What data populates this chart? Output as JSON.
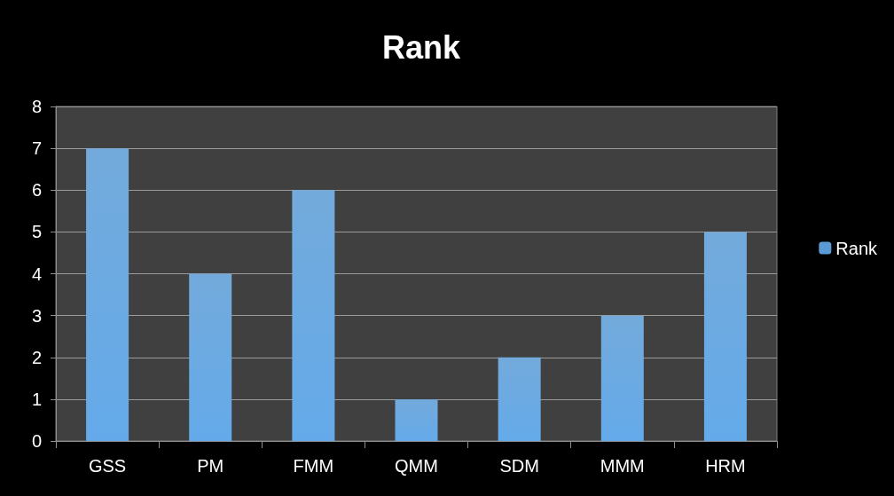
{
  "chart_data": {
    "type": "bar",
    "title": "Rank",
    "categories": [
      "GSS",
      "PM",
      "FMM",
      "QMM",
      "SDM",
      "MMM",
      "HRM"
    ],
    "series": [
      {
        "name": "Rank",
        "color": "#5b9bd5",
        "values": [
          7,
          4,
          6,
          1,
          2,
          3,
          5
        ]
      }
    ],
    "ylim": [
      0,
      8
    ],
    "yticks": [
      0,
      1,
      2,
      3,
      4,
      5,
      6,
      7,
      8
    ],
    "grid": "y",
    "legend": "right"
  }
}
